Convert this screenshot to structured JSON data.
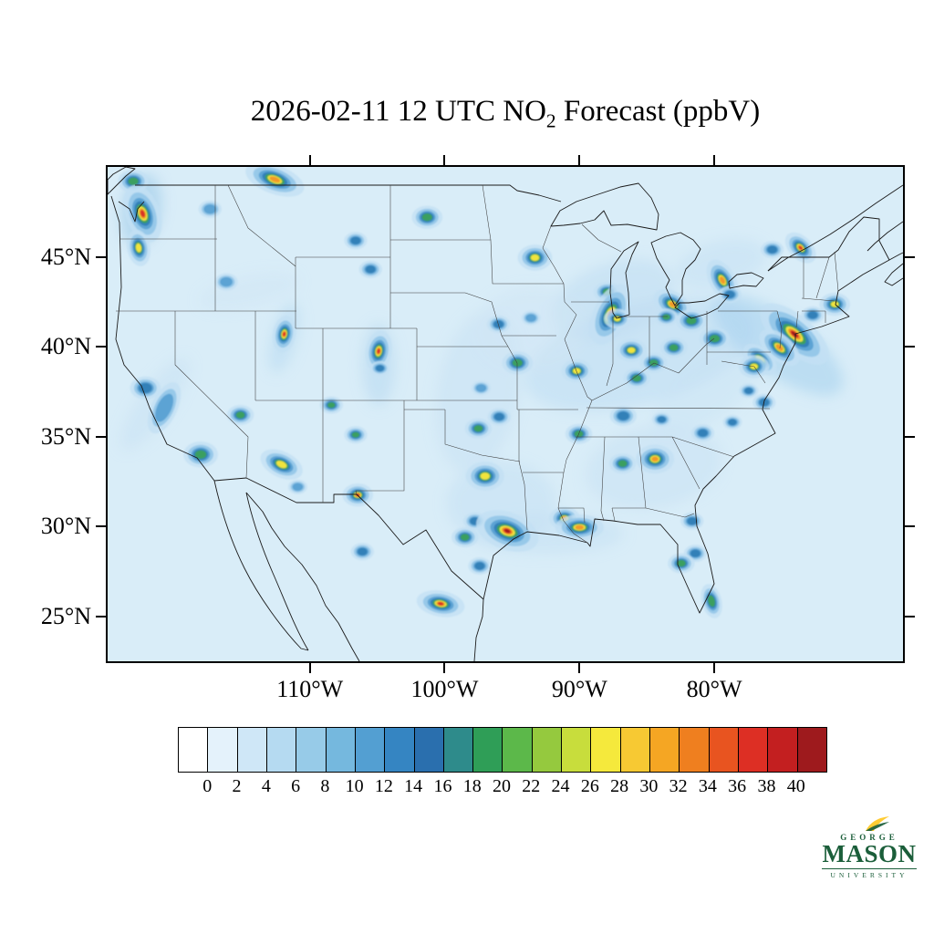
{
  "title": {
    "prefix": "2026-02-11 12 UTC NO",
    "sub": "2",
    "suffix": " Forecast (ppbV)"
  },
  "map": {
    "field_background": "#d9edf8",
    "bounds": {
      "lon": [
        -125,
        -66
      ],
      "lat": [
        22.5,
        50
      ]
    },
    "y_ticks": [
      {
        "label": "45°N",
        "lat": 45
      },
      {
        "label": "40°N",
        "lat": 40
      },
      {
        "label": "35°N",
        "lat": 35
      },
      {
        "label": "30°N",
        "lat": 30
      },
      {
        "label": "25°N",
        "lat": 25
      }
    ],
    "x_ticks": [
      {
        "label": "110°W",
        "lon": -110
      },
      {
        "label": "100°W",
        "lon": -100
      },
      {
        "label": "90°W",
        "lon": -90
      },
      {
        "label": "80°W",
        "lon": -80
      }
    ],
    "intensity_levels": [
      {
        "min": 0,
        "scale": 2.1,
        "color": "#c3e0f4",
        "opacity": 0.8
      },
      {
        "min": 5,
        "scale": 1.55,
        "color": "#8fc4e8",
        "opacity": 0.85
      },
      {
        "min": 9,
        "scale": 1.15,
        "color": "#57a0d3",
        "opacity": 0.9
      },
      {
        "min": 13,
        "scale": 0.9,
        "color": "#2f7cb5",
        "opacity": 0.9
      },
      {
        "min": 17,
        "scale": 0.7,
        "color": "#3ba05c",
        "opacity": 0.95
      },
      {
        "min": 23,
        "scale": 0.52,
        "color": "#f0e43c",
        "opacity": 1
      },
      {
        "min": 28,
        "scale": 0.38,
        "color": "#f1992b",
        "opacity": 1
      },
      {
        "min": 33,
        "scale": 0.26,
        "color": "#d93226",
        "opacity": 1
      },
      {
        "min": 38,
        "scale": 0.17,
        "color": "#9f1b1e",
        "opacity": 1
      }
    ],
    "plumes": [
      {
        "name": "ohio-valley",
        "lon": -85.5,
        "lat": 39.6,
        "rx": 130,
        "ry": 55,
        "rot": -15,
        "color": "#bddcf2",
        "opacity": 0.55
      },
      {
        "name": "northeast-corridor",
        "lon": -75.3,
        "lat": 40.1,
        "rx": 85,
        "ry": 32,
        "rot": 35,
        "color": "#a9d2ee",
        "opacity": 0.6
      },
      {
        "name": "great-lakes",
        "lon": -87.5,
        "lat": 42.6,
        "rx": 70,
        "ry": 40,
        "rot": -20,
        "color": "#bddcf2",
        "opacity": 0.5
      },
      {
        "name": "central-plains",
        "lon": -97.5,
        "lat": 37.5,
        "rx": 45,
        "ry": 90,
        "rot": 10,
        "color": "#c8e2f4",
        "opacity": 0.5
      },
      {
        "name": "east-texas",
        "lon": -95.8,
        "lat": 31.3,
        "rx": 60,
        "ry": 45,
        "rot": 0,
        "color": "#c3dff3",
        "opacity": 0.5
      },
      {
        "name": "southeast",
        "lon": -84.5,
        "lat": 33.3,
        "rx": 75,
        "ry": 45,
        "rot": -10,
        "color": "#c8e2f4",
        "opacity": 0.5
      },
      {
        "name": "missouri-valley",
        "lon": -93.5,
        "lat": 41.0,
        "rx": 60,
        "ry": 45,
        "rot": 0,
        "color": "#cfe6f6",
        "opacity": 0.5
      },
      {
        "name": "front-range",
        "lon": -104.9,
        "lat": 39.0,
        "rx": 18,
        "ry": 45,
        "rot": 0,
        "color": "#b6d9f1",
        "opacity": 0.55
      },
      {
        "name": "wasatch",
        "lon": -111.9,
        "lat": 40.5,
        "rx": 14,
        "ry": 40,
        "rot": 15,
        "color": "#b6d9f1",
        "opacity": 0.5
      },
      {
        "name": "snake-river",
        "lon": -114.5,
        "lat": 43.1,
        "rx": 55,
        "ry": 16,
        "rot": -12,
        "color": "#cfe6f6",
        "opacity": 0.5
      },
      {
        "name": "puget-sound",
        "lon": -122.5,
        "lat": 47.6,
        "rx": 22,
        "ry": 40,
        "rot": 10,
        "color": "#9fcbe9",
        "opacity": 0.6
      },
      {
        "name": "california-coast",
        "lon": -121.5,
        "lat": 36.8,
        "rx": 18,
        "ry": 60,
        "rot": 35,
        "color": "#c8e2f4",
        "opacity": 0.5
      },
      {
        "name": "gulf-coast",
        "lon": -92.5,
        "lat": 29.6,
        "rx": 85,
        "ry": 22,
        "rot": 0,
        "color": "#c3dff3",
        "opacity": 0.5
      },
      {
        "name": "appalachia",
        "lon": -80.5,
        "lat": 37.5,
        "rx": 70,
        "ry": 30,
        "rot": -35,
        "color": "#c8e2f4",
        "opacity": 0.45
      },
      {
        "name": "ontario-corridor",
        "lon": -79.5,
        "lat": 44.6,
        "rx": 50,
        "ry": 25,
        "rot": -15,
        "color": "#c3dff3",
        "opacity": 0.5
      }
    ],
    "hotspots": [
      {
        "name": "Vancouver",
        "lon": -123.1,
        "lat": 49.2,
        "peak": 18,
        "spread": 8
      },
      {
        "name": "Seattle-Tacoma",
        "lon": -122.4,
        "lat": 47.4,
        "peak": 36,
        "spread": 12,
        "stretch": 1.3,
        "rot": 70
      },
      {
        "name": "Portland",
        "lon": -122.7,
        "lat": 45.5,
        "peak": 24,
        "spread": 8,
        "stretch": 1.2,
        "rot": 80
      },
      {
        "name": "Spokane",
        "lon": -117.4,
        "lat": 47.65,
        "peak": 12,
        "spread": 6
      },
      {
        "name": "Boise",
        "lon": -116.2,
        "lat": 43.6,
        "peak": 10,
        "spread": 6
      },
      {
        "name": "Alberta-plume",
        "lon": -112.6,
        "lat": 49.3,
        "peak": 30,
        "spread": 10,
        "stretch": 1.6,
        "rot": 20
      },
      {
        "name": "Salt-Lake-City",
        "lon": -111.9,
        "lat": 40.7,
        "peak": 34,
        "spread": 8,
        "stretch": 1.2,
        "rot": 100
      },
      {
        "name": "Las-Vegas",
        "lon": -115.15,
        "lat": 36.2,
        "peak": 18,
        "spread": 7
      },
      {
        "name": "San-Francisco-Bay",
        "lon": -122.2,
        "lat": 37.7,
        "peak": 16,
        "spread": 8
      },
      {
        "name": "Central-Valley",
        "lon": -120.8,
        "lat": 36.6,
        "peak": 10,
        "spread": 9,
        "stretch": 1.6,
        "rot": 115
      },
      {
        "name": "Los-Angeles",
        "lon": -118.1,
        "lat": 34.0,
        "peak": 20,
        "spread": 9
      },
      {
        "name": "Phoenix",
        "lon": -112.1,
        "lat": 33.45,
        "peak": 26,
        "spread": 9,
        "stretch": 1.3,
        "rot": 25
      },
      {
        "name": "Tucson",
        "lon": -110.9,
        "lat": 32.2,
        "peak": 12,
        "spread": 5
      },
      {
        "name": "Albuquerque",
        "lon": -106.6,
        "lat": 35.1,
        "peak": 18,
        "spread": 6
      },
      {
        "name": "Four-Corners",
        "lon": -108.4,
        "lat": 36.75,
        "peak": 22,
        "spread": 6
      },
      {
        "name": "Denver",
        "lon": -104.9,
        "lat": 39.75,
        "peak": 36,
        "spread": 9,
        "stretch": 1.2,
        "rot": 100
      },
      {
        "name": "Colorado-Springs",
        "lon": -104.8,
        "lat": 38.8,
        "peak": 14,
        "spread": 5
      },
      {
        "name": "Gillette",
        "lon": -105.5,
        "lat": 44.3,
        "peak": 16,
        "spread": 6
      },
      {
        "name": "Colstrip",
        "lon": -106.6,
        "lat": 45.9,
        "peak": 14,
        "spread": 6
      },
      {
        "name": "North-Dakota-plants",
        "lon": -101.3,
        "lat": 47.2,
        "peak": 20,
        "spread": 8
      },
      {
        "name": "El-Paso-Juarez",
        "lon": -106.45,
        "lat": 31.75,
        "peak": 34,
        "spread": 8
      },
      {
        "name": "Chihuahua",
        "lon": -106.1,
        "lat": 28.6,
        "peak": 14,
        "spread": 6
      },
      {
        "name": "Monterrey",
        "lon": -100.3,
        "lat": 25.7,
        "peak": 36,
        "spread": 9,
        "stretch": 1.4,
        "rot": 10
      },
      {
        "name": "Oklahoma-City",
        "lon": -97.5,
        "lat": 35.45,
        "peak": 18,
        "spread": 7
      },
      {
        "name": "Tulsa",
        "lon": -95.95,
        "lat": 36.1,
        "peak": 16,
        "spread": 6
      },
      {
        "name": "Wichita",
        "lon": -97.3,
        "lat": 37.7,
        "peak": 12,
        "spread": 5
      },
      {
        "name": "Dallas-Fort-Worth",
        "lon": -97.0,
        "lat": 32.8,
        "peak": 26,
        "spread": 10
      },
      {
        "name": "Austin",
        "lon": -97.75,
        "lat": 30.3,
        "peak": 14,
        "spread": 6
      },
      {
        "name": "San-Antonio",
        "lon": -98.5,
        "lat": 29.4,
        "peak": 18,
        "spread": 7
      },
      {
        "name": "Houston",
        "lon": -95.35,
        "lat": 29.75,
        "peak": 38,
        "spread": 13,
        "stretch": 1.3,
        "rot": 20
      },
      {
        "name": "Corpus-Christi",
        "lon": -97.4,
        "lat": 27.8,
        "peak": 14,
        "spread": 6
      },
      {
        "name": "Baton-Rouge",
        "lon": -91.1,
        "lat": 30.45,
        "peak": 28,
        "spread": 8
      },
      {
        "name": "New-Orleans",
        "lon": -90.0,
        "lat": 29.95,
        "peak": 30,
        "spread": 9,
        "stretch": 1.4,
        "rot": 0
      },
      {
        "name": "Memphis",
        "lon": -90.05,
        "lat": 35.15,
        "peak": 18,
        "spread": 7
      },
      {
        "name": "Birmingham",
        "lon": -86.8,
        "lat": 33.5,
        "peak": 18,
        "spread": 7
      },
      {
        "name": "Atlanta",
        "lon": -84.4,
        "lat": 33.75,
        "peak": 30,
        "spread": 10
      },
      {
        "name": "Nashville",
        "lon": -86.75,
        "lat": 36.15,
        "peak": 16,
        "spread": 7
      },
      {
        "name": "St-Louis",
        "lon": -90.2,
        "lat": 38.65,
        "peak": 24,
        "spread": 8
      },
      {
        "name": "Kansas-City",
        "lon": -94.6,
        "lat": 39.1,
        "peak": 22,
        "spread": 8
      },
      {
        "name": "Omaha",
        "lon": -96.0,
        "lat": 41.25,
        "peak": 16,
        "spread": 6
      },
      {
        "name": "Des-Moines",
        "lon": -93.6,
        "lat": 41.6,
        "peak": 12,
        "spread": 5
      },
      {
        "name": "Minneapolis",
        "lon": -93.3,
        "lat": 44.95,
        "peak": 24,
        "spread": 9
      },
      {
        "name": "Milwaukee",
        "lon": -87.95,
        "lat": 43.05,
        "peak": 18,
        "spread": 7
      },
      {
        "name": "Chicago",
        "lon": -87.7,
        "lat": 41.8,
        "peak": 38,
        "spread": 12,
        "stretch": 1.4,
        "rot": 115
      },
      {
        "name": "Gary",
        "lon": -87.2,
        "lat": 41.55,
        "peak": 24,
        "spread": 7
      },
      {
        "name": "Indianapolis",
        "lon": -86.15,
        "lat": 39.8,
        "peak": 24,
        "spread": 8
      },
      {
        "name": "Cincinnati",
        "lon": -84.5,
        "lat": 39.1,
        "peak": 22,
        "spread": 7
      },
      {
        "name": "Columbus",
        "lon": -83.0,
        "lat": 39.95,
        "peak": 20,
        "spread": 7
      },
      {
        "name": "Louisville",
        "lon": -85.75,
        "lat": 38.25,
        "peak": 20,
        "spread": 7
      },
      {
        "name": "Detroit",
        "lon": -83.1,
        "lat": 42.35,
        "peak": 30,
        "spread": 9,
        "stretch": 1.2,
        "rot": 30
      },
      {
        "name": "Toledo",
        "lon": -83.55,
        "lat": 41.65,
        "peak": 18,
        "spread": 6
      },
      {
        "name": "Cleveland",
        "lon": -81.7,
        "lat": 41.45,
        "peak": 22,
        "spread": 8
      },
      {
        "name": "Pittsburgh",
        "lon": -79.97,
        "lat": 40.45,
        "peak": 22,
        "spread": 8
      },
      {
        "name": "Toronto",
        "lon": -79.4,
        "lat": 43.7,
        "peak": 30,
        "spread": 9,
        "stretch": 1.3,
        "rot": 60
      },
      {
        "name": "Buffalo",
        "lon": -78.85,
        "lat": 42.9,
        "peak": 16,
        "spread": 6
      },
      {
        "name": "Ottawa",
        "lon": -75.7,
        "lat": 45.4,
        "peak": 14,
        "spread": 6
      },
      {
        "name": "Montreal",
        "lon": -73.6,
        "lat": 45.5,
        "peak": 34,
        "spread": 8,
        "stretch": 1.2,
        "rot": 45
      },
      {
        "name": "Boston",
        "lon": -71.06,
        "lat": 42.36,
        "peak": 24,
        "spread": 8
      },
      {
        "name": "Hartford",
        "lon": -72.7,
        "lat": 41.76,
        "peak": 16,
        "spread": 6
      },
      {
        "name": "New-York-City",
        "lon": -74.05,
        "lat": 40.7,
        "peak": 40,
        "spread": 13,
        "stretch": 1.7,
        "rot": 40
      },
      {
        "name": "Philadelphia",
        "lon": -75.16,
        "lat": 39.95,
        "peak": 30,
        "spread": 9,
        "stretch": 1.4,
        "rot": 40
      },
      {
        "name": "Baltimore",
        "lon": -76.6,
        "lat": 39.3,
        "peak": 26,
        "spread": 8,
        "stretch": 1.3,
        "rot": 40
      },
      {
        "name": "Washington-DC",
        "lon": -77.05,
        "lat": 38.9,
        "peak": 24,
        "spread": 8
      },
      {
        "name": "Norfolk",
        "lon": -76.3,
        "lat": 36.9,
        "peak": 16,
        "spread": 6
      },
      {
        "name": "Richmond",
        "lon": -77.45,
        "lat": 37.55,
        "peak": 14,
        "spread": 5
      },
      {
        "name": "Charlotte",
        "lon": -80.85,
        "lat": 35.2,
        "peak": 16,
        "spread": 6
      },
      {
        "name": "Raleigh",
        "lon": -78.65,
        "lat": 35.8,
        "peak": 14,
        "spread": 5
      },
      {
        "name": "Knoxville",
        "lon": -83.9,
        "lat": 35.95,
        "peak": 14,
        "spread": 5
      },
      {
        "name": "Jacksonville",
        "lon": -81.65,
        "lat": 30.3,
        "peak": 16,
        "spread": 6
      },
      {
        "name": "Orlando",
        "lon": -81.4,
        "lat": 28.5,
        "peak": 16,
        "spread": 6
      },
      {
        "name": "Tampa",
        "lon": -82.45,
        "lat": 27.95,
        "peak": 20,
        "spread": 7
      },
      {
        "name": "Miami",
        "lon": -80.2,
        "lat": 25.85,
        "peak": 22,
        "spread": 7,
        "stretch": 1.3,
        "rot": 75
      }
    ]
  },
  "colorbar": {
    "colors": [
      "#ffffff",
      "#e4f2fb",
      "#cfe7f7",
      "#b5daf1",
      "#97cbe8",
      "#75b8de",
      "#539fd2",
      "#3585c2",
      "#2a6fae",
      "#2e8b8b",
      "#2f9e57",
      "#5cb84a",
      "#95c93e",
      "#c8dd3c",
      "#f5e93c",
      "#f7c933",
      "#f5a623",
      "#ef7f1f",
      "#e85420",
      "#dd2f24",
      "#c31f20",
      "#9e1a1d"
    ],
    "tick_labels": [
      "0",
      "2",
      "4",
      "6",
      "8",
      "10",
      "12",
      "14",
      "16",
      "18",
      "20",
      "22",
      "24",
      "26",
      "28",
      "30",
      "32",
      "34",
      "36",
      "38",
      "40"
    ]
  },
  "logo": {
    "line1": "GEORGE",
    "line2": "MASON",
    "line3": "UNIVERSITY",
    "green": "#1b5e3a",
    "gold": "#ffcc33"
  }
}
